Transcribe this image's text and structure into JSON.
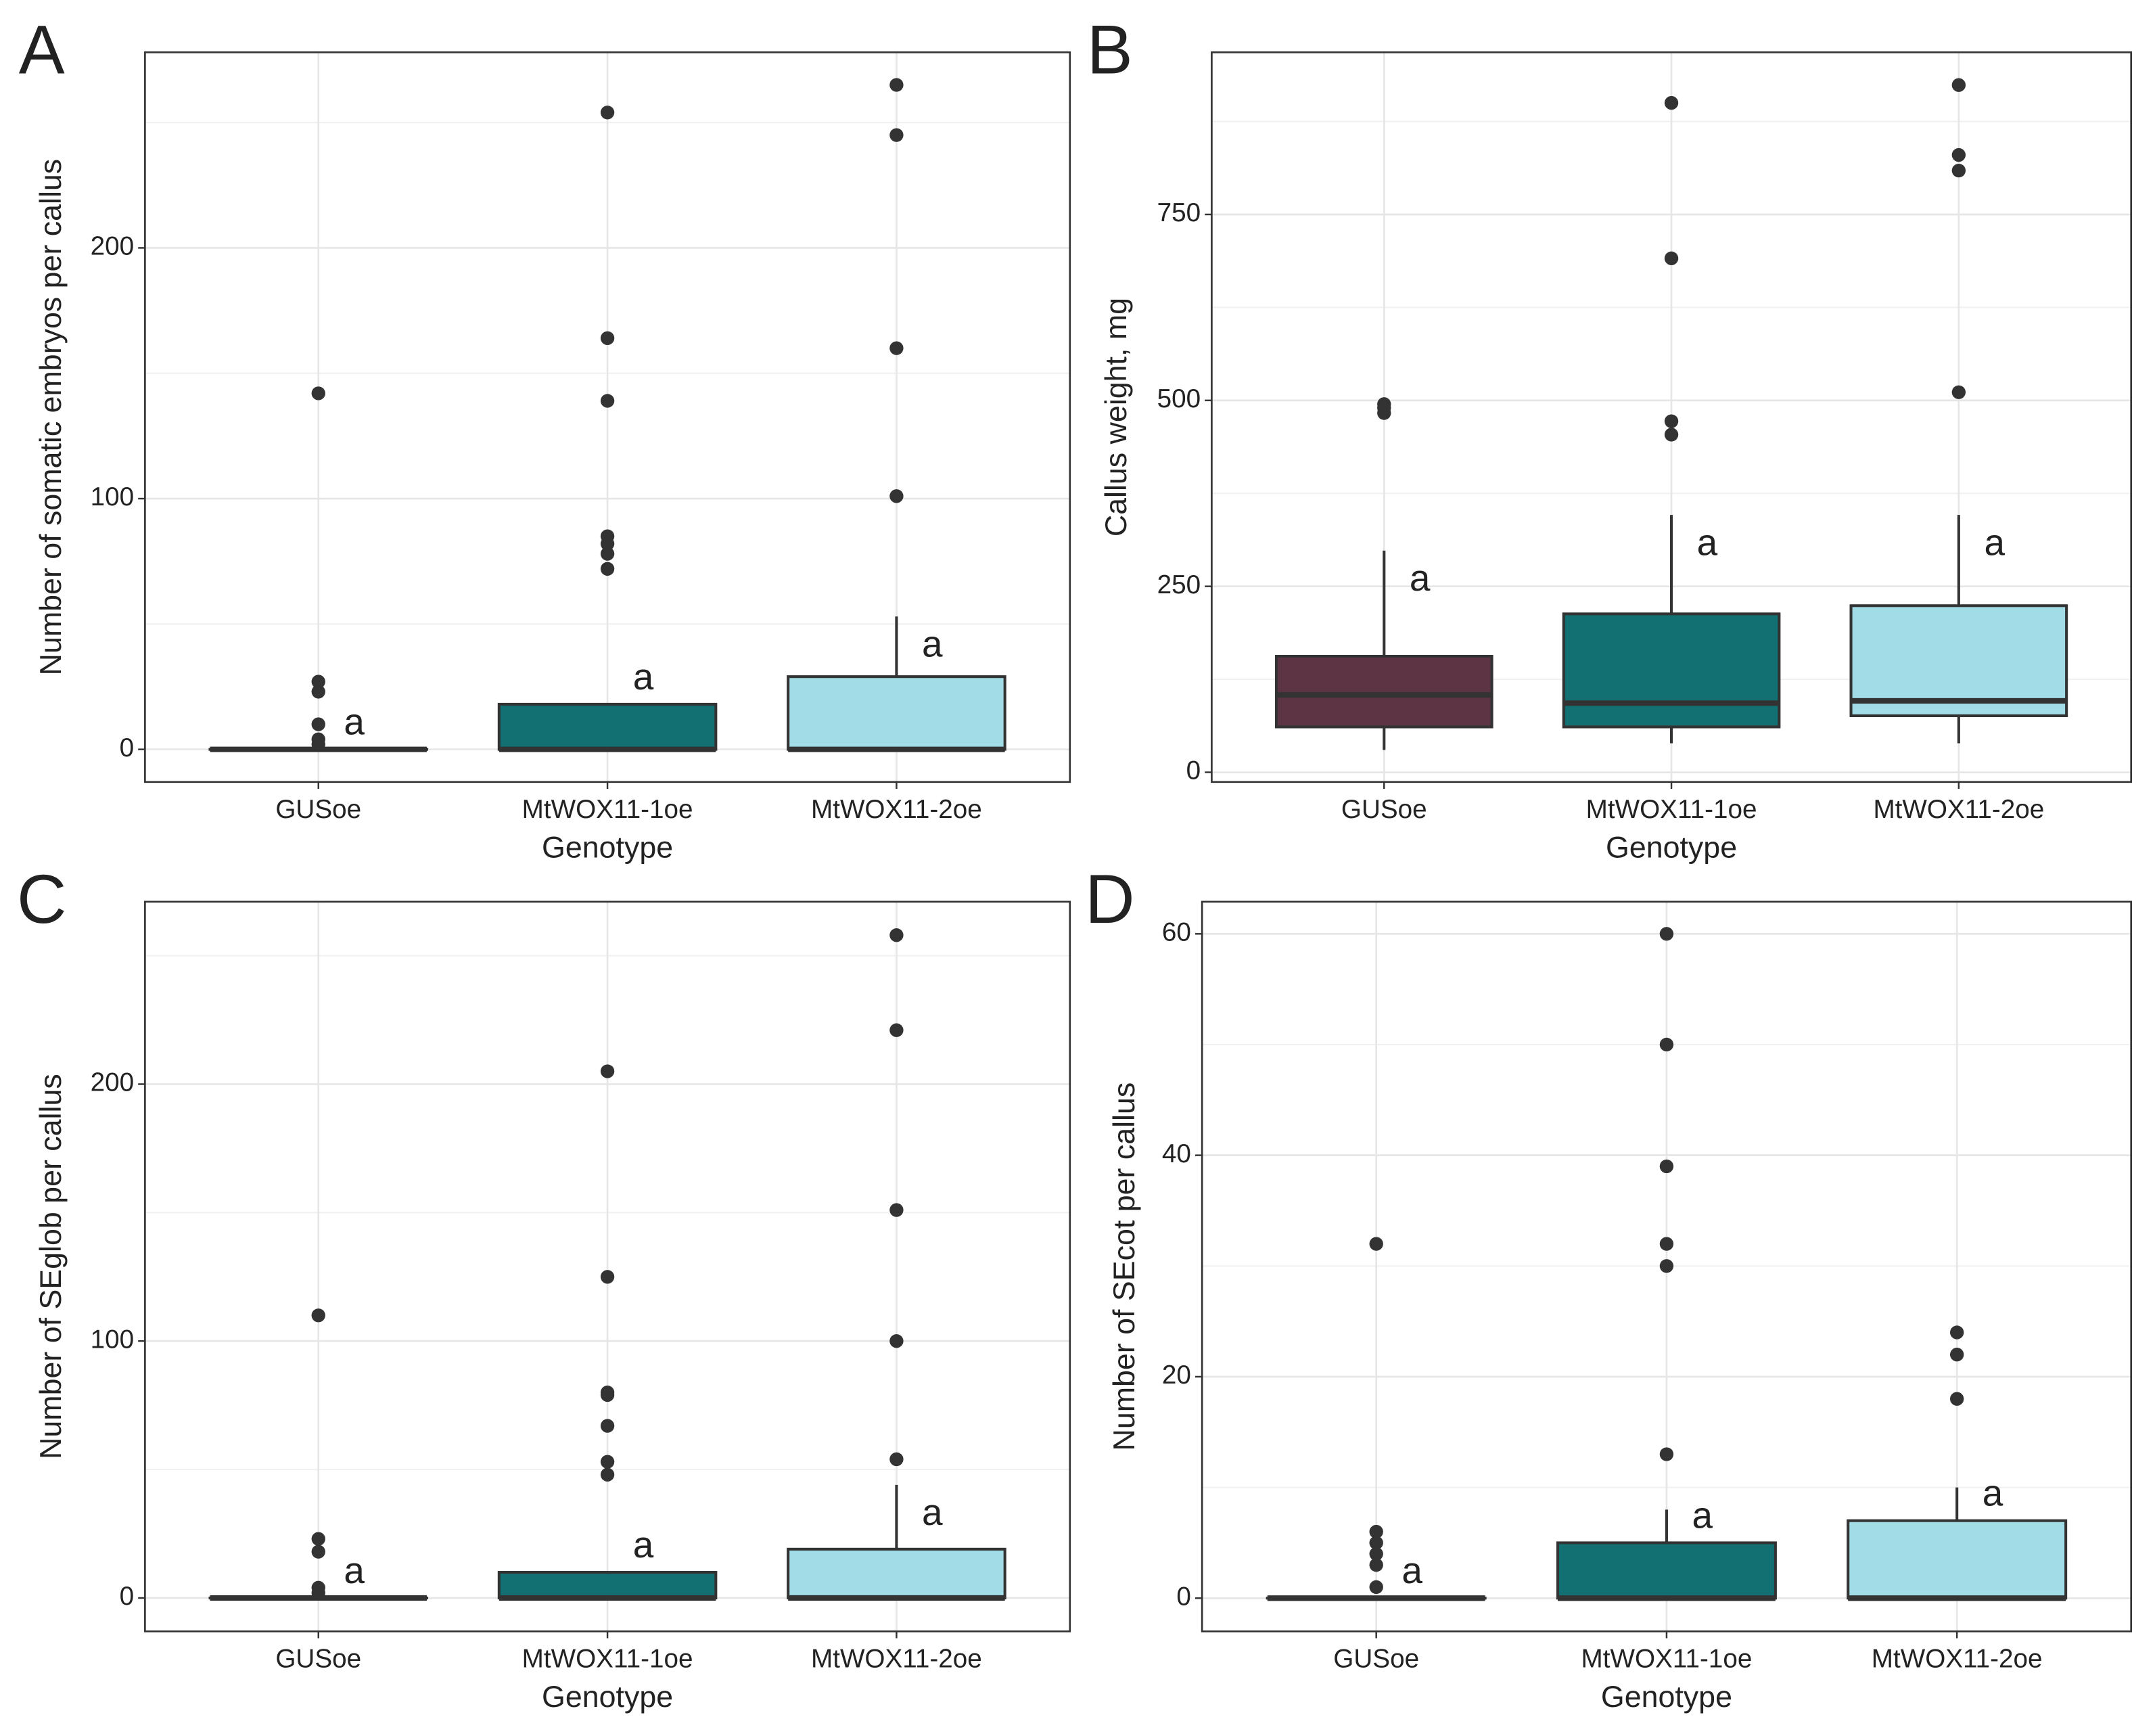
{
  "chart_data": [
    {
      "type": "box",
      "panel": "A",
      "ylabel": "Number of somatic embryos per callus",
      "xlabel": "Genotype",
      "categories": [
        "GUSoe",
        "MtWOX11-1oe",
        "MtWOX11-2oe"
      ],
      "colors": [
        "#5c3444",
        "#137072",
        "#a2dce6"
      ],
      "ylim": [
        -13,
        278
      ],
      "yticks": [
        0,
        100,
        200
      ],
      "grid": true,
      "boxes": [
        {
          "whislo": 0,
          "q1": 0,
          "med": 0,
          "q3": 0,
          "whishi": 0,
          "fliers": [
            142,
            27,
            23,
            10,
            4,
            2
          ],
          "label": "a"
        },
        {
          "whislo": 0,
          "q1": 0,
          "med": 0,
          "q3": 18,
          "whishi": 18,
          "fliers": [
            254,
            164,
            139,
            85,
            82,
            78,
            72
          ],
          "label": "a"
        },
        {
          "whislo": 0,
          "q1": 0,
          "med": 0,
          "q3": 29,
          "whishi": 53,
          "fliers": [
            265,
            245,
            160,
            101
          ],
          "label": "a"
        }
      ]
    },
    {
      "type": "box",
      "panel": "B",
      "ylabel": "Callus weight, mg",
      "xlabel": "Genotype",
      "categories": [
        "GUSoe",
        "MtWOX11-1oe",
        "MtWOX11-2oe"
      ],
      "colors": [
        "#5c3444",
        "#137072",
        "#a2dce6"
      ],
      "ylim": [
        -13,
        968
      ],
      "yticks": [
        0,
        250,
        500,
        750
      ],
      "grid": true,
      "boxes": [
        {
          "whislo": 30,
          "q1": 61,
          "med": 104,
          "q3": 156,
          "whishi": 298,
          "fliers": [
            495,
            490,
            483
          ],
          "label": "a"
        },
        {
          "whislo": 39,
          "q1": 61,
          "med": 93,
          "q3": 213,
          "whishi": 346,
          "fliers": [
            900,
            691,
            472,
            454
          ],
          "label": "a"
        },
        {
          "whislo": 39,
          "q1": 76,
          "med": 96,
          "q3": 224,
          "whishi": 346,
          "fliers": [
            924,
            830,
            809,
            511
          ],
          "label": "a"
        }
      ]
    },
    {
      "type": "box",
      "panel": "C",
      "ylabel": "Number of SEglob per callus",
      "xlabel": "Genotype",
      "categories": [
        "GUSoe",
        "MtWOX11-1oe",
        "MtWOX11-2oe"
      ],
      "colors": [
        "#5c3444",
        "#137072",
        "#a2dce6"
      ],
      "ylim": [
        -13,
        271
      ],
      "yticks": [
        0,
        100,
        200
      ],
      "grid": true,
      "boxes": [
        {
          "whislo": 0,
          "q1": 0,
          "med": 0,
          "q3": 0,
          "whishi": 0,
          "fliers": [
            110,
            23,
            18,
            4,
            2
          ],
          "label": "a"
        },
        {
          "whislo": 0,
          "q1": 0,
          "med": 0,
          "q3": 10,
          "whishi": 10,
          "fliers": [
            205,
            125,
            80,
            79,
            67,
            53,
            48
          ],
          "label": "a"
        },
        {
          "whislo": 0,
          "q1": 0,
          "med": 0,
          "q3": 19,
          "whishi": 44,
          "fliers": [
            258,
            221,
            151,
            100,
            54
          ],
          "label": "a"
        }
      ]
    },
    {
      "type": "box",
      "panel": "D",
      "ylabel": "Number of SEcot per callus",
      "xlabel": "Genotype",
      "categories": [
        "GUSoe",
        "MtWOX11-1oe",
        "MtWOX11-2oe"
      ],
      "colors": [
        "#5c3444",
        "#137072",
        "#a2dce6"
      ],
      "ylim": [
        -3,
        62.9
      ],
      "yticks": [
        0,
        20,
        40,
        60
      ],
      "grid": true,
      "boxes": [
        {
          "whislo": 0,
          "q1": 0,
          "med": 0,
          "q3": 0,
          "whishi": 0,
          "fliers": [
            32,
            6,
            5,
            4,
            3,
            1
          ],
          "label": "a"
        },
        {
          "whislo": 0,
          "q1": 0,
          "med": 0,
          "q3": 5,
          "whishi": 8,
          "fliers": [
            60,
            50,
            39,
            32,
            30,
            13
          ],
          "label": "a"
        },
        {
          "whislo": 0,
          "q1": 0,
          "med": 0,
          "q3": 7,
          "whishi": 10,
          "fliers": [
            24,
            22,
            18
          ],
          "label": "a"
        }
      ]
    }
  ]
}
